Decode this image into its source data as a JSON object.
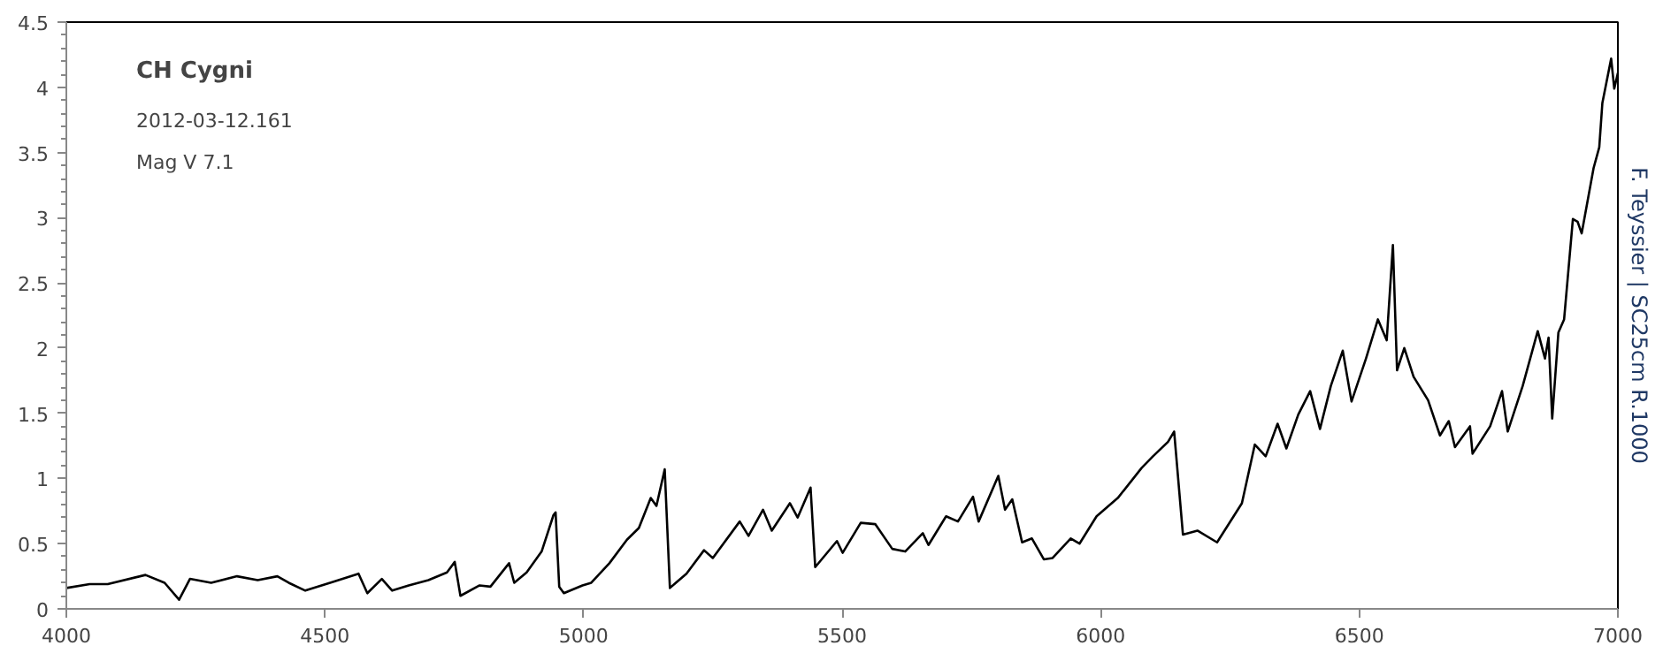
{
  "chart_data": {
    "type": "line",
    "title": "CH Cygni",
    "subtitle": "2012-03-12.161",
    "annotations": [
      "Mag V 7.1",
      "F. Teyssier | SC25cm R.1000"
    ],
    "xlim": [
      4000,
      7000
    ],
    "xticks": [
      4000,
      4500,
      5000,
      5500,
      6000,
      6500,
      7000
    ],
    "ylim": [
      0,
      4.5
    ],
    "yticks": [
      0,
      0.5,
      1,
      1.5,
      2,
      2.5,
      3,
      3.5,
      4,
      4.5
    ],
    "grid": false,
    "marker": "none",
    "line_style": "solid",
    "series": [
      {
        "color": "#000000",
        "x": [
          4000,
          4045,
          4080,
          4153,
          4190,
          4218,
          4239,
          4280,
          4330,
          4370,
          4408,
          4430,
          4462,
          4510,
          4565,
          4582,
          4610,
          4630,
          4662,
          4700,
          4736,
          4751,
          4762,
          4799,
          4820,
          4856,
          4866,
          4890,
          4919,
          4942,
          4946,
          4953,
          4962,
          4998,
          5015,
          5050,
          5084,
          5107,
          5130,
          5141,
          5157,
          5167,
          5199,
          5233,
          5250,
          5302,
          5319,
          5347,
          5364,
          5399,
          5414,
          5439,
          5448,
          5490,
          5501,
          5536,
          5564,
          5597,
          5622,
          5656,
          5667,
          5701,
          5724,
          5753,
          5764,
          5802,
          5815,
          5829,
          5848,
          5867,
          5890,
          5907,
          5942,
          5959,
          5992,
          6033,
          6079,
          6101,
          6130,
          6142,
          6159,
          6187,
          6225,
          6273,
          6298,
          6319,
          6342,
          6359,
          6382,
          6405,
          6424,
          6445,
          6468,
          6485,
          6513,
          6536,
          6553,
          6565,
          6573,
          6587,
          6605,
          6633,
          6656,
          6673,
          6685,
          6714,
          6719,
          6753,
          6776,
          6787,
          6816,
          6845,
          6859,
          6866,
          6873,
          6885,
          6896,
          6913,
          6922,
          6930,
          6953,
          6964,
          6970,
          6987,
          6993,
          7000
        ],
        "values": [
          0.16,
          0.19,
          0.19,
          0.26,
          0.2,
          0.07,
          0.23,
          0.2,
          0.25,
          0.22,
          0.25,
          0.2,
          0.14,
          0.2,
          0.27,
          0.12,
          0.23,
          0.14,
          0.18,
          0.22,
          0.28,
          0.36,
          0.1,
          0.18,
          0.17,
          0.35,
          0.2,
          0.28,
          0.44,
          0.72,
          0.74,
          0.17,
          0.12,
          0.18,
          0.2,
          0.35,
          0.53,
          0.62,
          0.85,
          0.79,
          1.07,
          0.16,
          0.27,
          0.45,
          0.39,
          0.67,
          0.56,
          0.76,
          0.6,
          0.81,
          0.7,
          0.93,
          0.32,
          0.52,
          0.43,
          0.66,
          0.65,
          0.46,
          0.44,
          0.58,
          0.49,
          0.71,
          0.67,
          0.86,
          0.67,
          1.02,
          0.76,
          0.84,
          0.51,
          0.54,
          0.38,
          0.39,
          0.54,
          0.5,
          0.71,
          0.85,
          1.08,
          1.17,
          1.28,
          1.36,
          0.57,
          0.6,
          0.51,
          0.81,
          1.26,
          1.17,
          1.42,
          1.23,
          1.49,
          1.67,
          1.38,
          1.71,
          1.98,
          1.59,
          1.92,
          2.22,
          2.06,
          2.79,
          1.83,
          2.0,
          1.78,
          1.6,
          1.33,
          1.44,
          1.24,
          1.4,
          1.19,
          1.4,
          1.67,
          1.36,
          1.71,
          2.13,
          1.92,
          2.08,
          1.46,
          2.12,
          2.22,
          2.99,
          2.97,
          2.88,
          3.38,
          3.54,
          3.88,
          4.22,
          3.99,
          4.11
        ]
      }
    ]
  }
}
